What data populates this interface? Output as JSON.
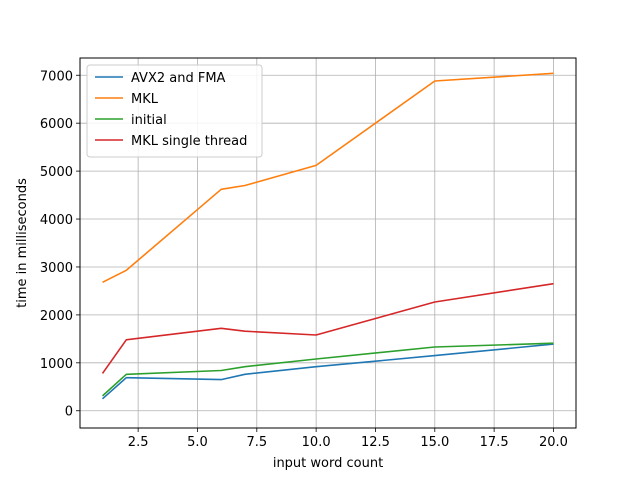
{
  "chart_data": {
    "type": "line",
    "xlabel": "input word count",
    "ylabel": "time in milliseconds",
    "xlim": [
      0.05,
      20.95
    ],
    "ylim": [
      -360,
      7360
    ],
    "xticks": [
      2.5,
      5.0,
      7.5,
      10.0,
      12.5,
      15.0,
      17.5,
      20.0
    ],
    "xtick_labels": [
      "2.5",
      "5.0",
      "7.5",
      "10.0",
      "12.5",
      "15.0",
      "17.5",
      "20.0"
    ],
    "yticks": [
      0,
      1000,
      2000,
      3000,
      4000,
      5000,
      6000,
      7000
    ],
    "ytick_labels": [
      "0",
      "1000",
      "2000",
      "3000",
      "4000",
      "5000",
      "6000",
      "7000"
    ],
    "grid": true,
    "legend_position": "top-left",
    "x": [
      1,
      2,
      6,
      7,
      10,
      15,
      20
    ],
    "series": [
      {
        "name": "AVX2 and FMA",
        "color": "#1f77b4",
        "values": [
          250,
          690,
          650,
          760,
          920,
          1150,
          1390
        ]
      },
      {
        "name": "MKL",
        "color": "#ff7f0e",
        "values": [
          2680,
          2930,
          4620,
          4700,
          5120,
          6880,
          7040
        ]
      },
      {
        "name": "initial",
        "color": "#2ca02c",
        "values": [
          310,
          760,
          840,
          920,
          1080,
          1330,
          1410
        ]
      },
      {
        "name": "MKL single thread",
        "color": "#d62728",
        "values": [
          780,
          1480,
          1720,
          1660,
          1580,
          2270,
          2650
        ]
      }
    ]
  }
}
